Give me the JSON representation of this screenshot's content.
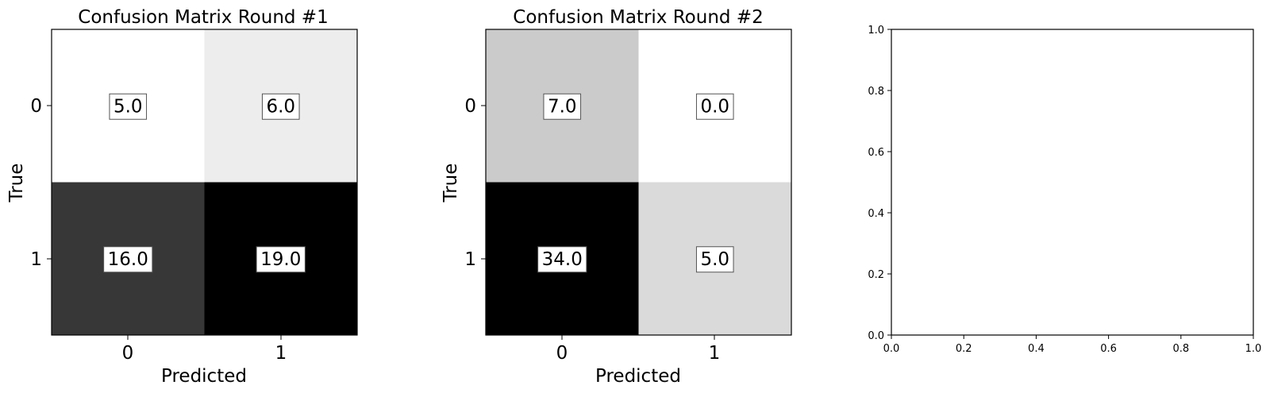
{
  "chart_data": [
    {
      "type": "heatmap",
      "title": "Confusion Matrix Round #1",
      "xlabel": "Predicted",
      "ylabel": "True",
      "x_ticks": [
        "0",
        "1"
      ],
      "y_ticks": [
        "0",
        "1"
      ],
      "colormap": "grayscale (white=low, black=high)",
      "value_range": [
        5.0,
        19.0
      ],
      "cells": [
        {
          "row": 0,
          "col": 0,
          "value": 5.0,
          "label": "5.0"
        },
        {
          "row": 0,
          "col": 1,
          "value": 6.0,
          "label": "6.0"
        },
        {
          "row": 1,
          "col": 0,
          "value": 16.0,
          "label": "16.0"
        },
        {
          "row": 1,
          "col": 1,
          "value": 19.0,
          "label": "19.0"
        }
      ]
    },
    {
      "type": "heatmap",
      "title": "Confusion Matrix Round #2",
      "xlabel": "Predicted",
      "ylabel": "True",
      "x_ticks": [
        "0",
        "1"
      ],
      "y_ticks": [
        "0",
        "1"
      ],
      "colormap": "grayscale (white=low, black=high)",
      "value_range": [
        0.0,
        34.0
      ],
      "cells": [
        {
          "row": 0,
          "col": 0,
          "value": 7.0,
          "label": "7.0"
        },
        {
          "row": 0,
          "col": 1,
          "value": 0.0,
          "label": "0.0"
        },
        {
          "row": 1,
          "col": 0,
          "value": 34.0,
          "label": "34.0"
        },
        {
          "row": 1,
          "col": 1,
          "value": 5.0,
          "label": "5.0"
        }
      ]
    },
    {
      "type": "scatter",
      "title": "",
      "xlabel": "",
      "ylabel": "",
      "xlim": [
        0.0,
        1.0
      ],
      "ylim": [
        0.0,
        1.0
      ],
      "x_ticks": [
        "0.0",
        "0.2",
        "0.4",
        "0.6",
        "0.8",
        "1.0"
      ],
      "y_ticks": [
        "0.0",
        "0.2",
        "0.4",
        "0.6",
        "0.8",
        "1.0"
      ],
      "series": []
    }
  ]
}
